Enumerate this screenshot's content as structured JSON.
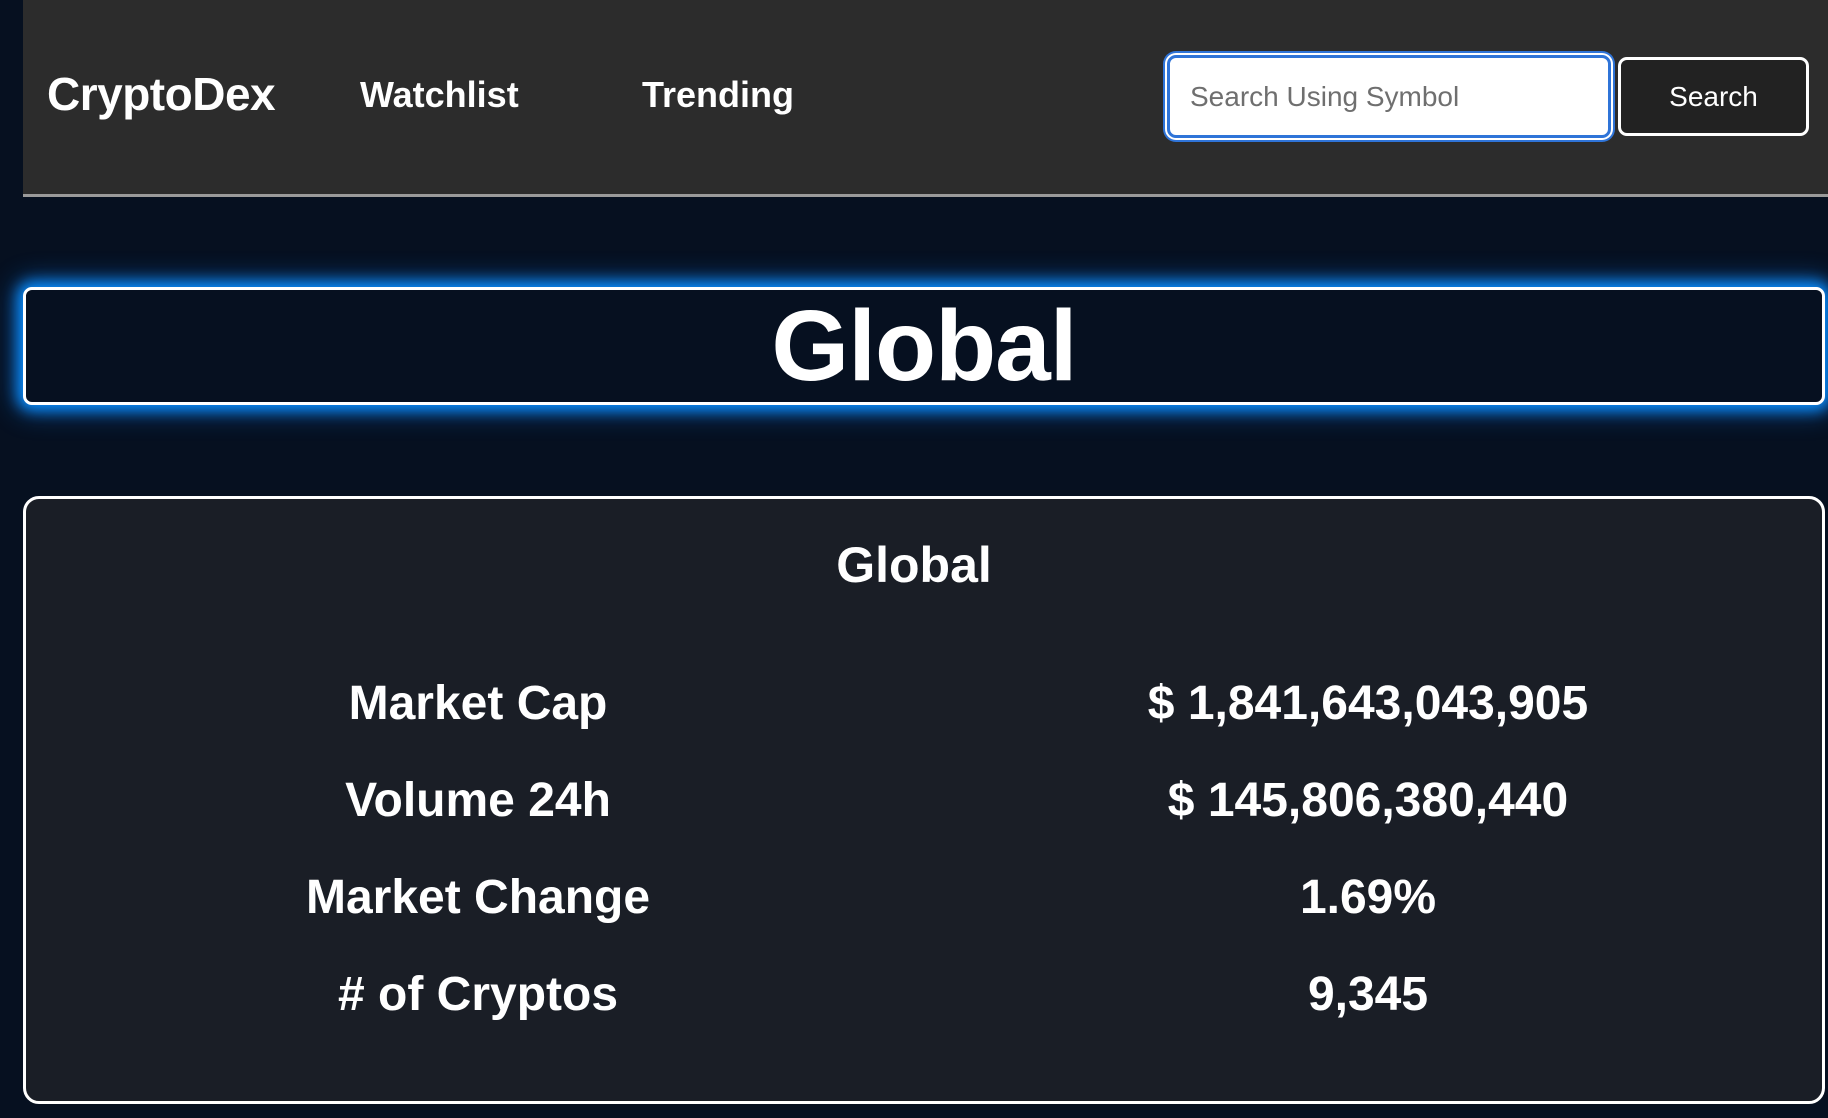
{
  "nav": {
    "brand": "CryptoDex",
    "links": [
      "Watchlist",
      "Trending"
    ],
    "search_placeholder": "Search Using Symbol",
    "search_button": "Search"
  },
  "hero": {
    "title": "Global"
  },
  "card": {
    "title": "Global",
    "stats": [
      {
        "label": "Market Cap",
        "value": "$ 1,841,643,043,905"
      },
      {
        "label": "Volume 24h",
        "value": "$ 145,806,380,440"
      },
      {
        "label": "Market Change",
        "value": "1.69%"
      },
      {
        "label": "# of Cryptos",
        "value": "9,345"
      }
    ]
  },
  "colors": {
    "page_background": "#061020",
    "navbar_background": "#2c2c2c",
    "card_background": "#1a1e26",
    "glow_accent": "#0a8fff",
    "input_focus": "#2f74d8"
  }
}
